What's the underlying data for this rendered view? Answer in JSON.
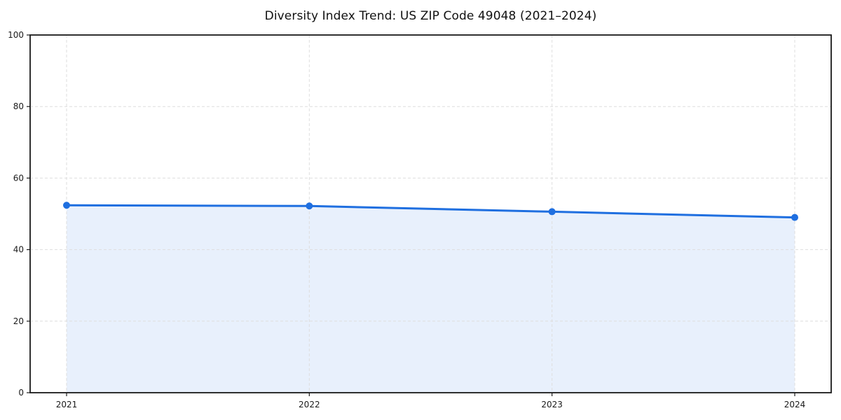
{
  "chart_data": {
    "type": "line",
    "title": "Diversity Index Trend: US ZIP Code 49048 (2021–2024)",
    "x": [
      2021,
      2022,
      2023,
      2024
    ],
    "xticklabels": [
      "2021",
      "2022",
      "2023",
      "2024"
    ],
    "series": [
      {
        "name": "Diversity Index",
        "values": [
          52.4,
          52.2,
          50.6,
          49.0
        ]
      }
    ],
    "xlabel": "",
    "ylabel": "",
    "ylim": [
      0,
      100
    ],
    "yticks": [
      0,
      20,
      40,
      60,
      80,
      100
    ],
    "grid": "dashed",
    "legend": "none",
    "colors": {
      "line": "#1f6fe0",
      "marker": "#1f6fe0",
      "area_fill": "#1f6fe0",
      "area_fill_opacity": 0.1,
      "grid_line": "#dedede",
      "axis_border": "#1a1a1a",
      "tick_label": "#1a1a1a",
      "background": "#ffffff"
    },
    "marker_style": "circle",
    "fill_under_line": true
  }
}
